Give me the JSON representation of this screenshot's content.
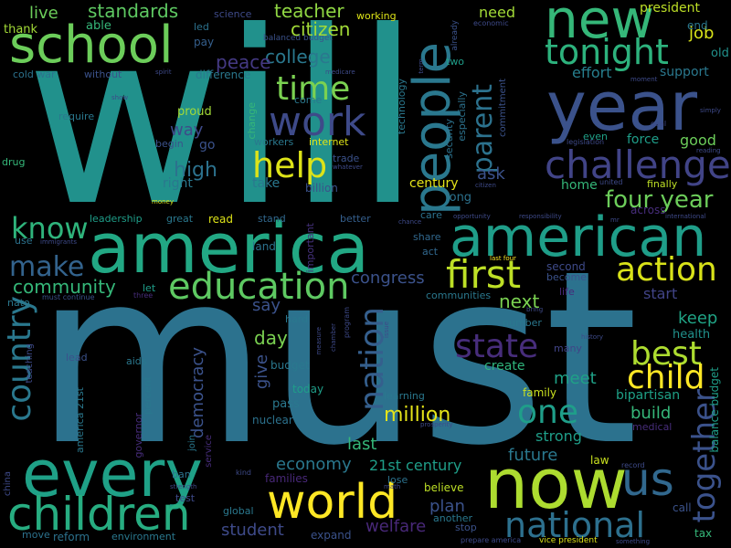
{
  "words": [
    {
      "text": "will",
      "color": "#21918c"
    },
    {
      "text": "must",
      "color": "#2c728e"
    },
    {
      "text": "america",
      "color": "#22a884"
    },
    {
      "text": "every",
      "color": "#1fa187"
    },
    {
      "text": "year",
      "color": "#3b528b"
    },
    {
      "text": "now",
      "color": "#addc30"
    },
    {
      "text": "american",
      "color": "#1f9e89"
    },
    {
      "text": "new",
      "color": "#35b779"
    },
    {
      "text": "people",
      "color": "#2a788e"
    },
    {
      "text": "school",
      "color": "#6ccd5a"
    },
    {
      "text": "children",
      "color": "#27ad81"
    },
    {
      "text": "world",
      "color": "#fde725"
    },
    {
      "text": "us",
      "color": "#31688e"
    },
    {
      "text": "challenge",
      "color": "#414487"
    },
    {
      "text": "work",
      "color": "#3e4a89"
    },
    {
      "text": "national",
      "color": "#2d708e"
    },
    {
      "text": "tonight",
      "color": "#2db27d"
    },
    {
      "text": "first",
      "color": "#bddf26"
    },
    {
      "text": "education",
      "color": "#5ec962"
    },
    {
      "text": "action",
      "color": "#d8e219"
    },
    {
      "text": "country",
      "color": "#2a788e"
    },
    {
      "text": "time",
      "color": "#7ad151"
    },
    {
      "text": "help",
      "color": "#dde318"
    },
    {
      "text": "nation",
      "color": "#355f8d"
    },
    {
      "text": "state",
      "color": "#472d7b"
    },
    {
      "text": "best",
      "color": "#addc30"
    },
    {
      "text": "child",
      "color": "#fde725"
    },
    {
      "text": "together",
      "color": "#3b528b"
    },
    {
      "text": "one",
      "color": "#1f9e89"
    },
    {
      "text": "parent",
      "color": "#2c728e"
    },
    {
      "text": "know",
      "color": "#2fb47c"
    },
    {
      "text": "make",
      "color": "#33638d"
    },
    {
      "text": "four year",
      "color": "#6ccd5a"
    },
    {
      "text": "community",
      "color": "#35b779"
    },
    {
      "text": "college",
      "color": "#2a788e"
    },
    {
      "text": "million",
      "color": "#e5e419"
    },
    {
      "text": "citizen",
      "color": "#a2da37"
    },
    {
      "text": "standards",
      "color": "#5ec962"
    },
    {
      "text": "teacher",
      "color": "#90d743"
    },
    {
      "text": "peace",
      "color": "#443983"
    },
    {
      "text": "live",
      "color": "#6ccd5a"
    },
    {
      "text": "high",
      "color": "#2c728e"
    },
    {
      "text": "congress",
      "color": "#3b528b"
    },
    {
      "text": "next",
      "color": "#7ad151"
    },
    {
      "text": "keep",
      "color": "#20a486"
    },
    {
      "text": "build",
      "color": "#35b779"
    },
    {
      "text": "meet",
      "color": "#1fa187"
    },
    {
      "text": "economy",
      "color": "#2a788e"
    },
    {
      "text": "21st century",
      "color": "#1f9e89"
    },
    {
      "text": "future",
      "color": "#2a788e"
    },
    {
      "text": "strong",
      "color": "#1f9e89"
    },
    {
      "text": "last",
      "color": "#35b779"
    },
    {
      "text": "plan",
      "color": "#3b528b"
    },
    {
      "text": "welfare",
      "color": "#482878"
    },
    {
      "text": "student",
      "color": "#3e4a89"
    },
    {
      "text": "democracy",
      "color": "#3b528b"
    },
    {
      "text": "day",
      "color": "#7ad151"
    },
    {
      "text": "give",
      "color": "#3b528b"
    },
    {
      "text": "say",
      "color": "#3b528b"
    },
    {
      "text": "job",
      "color": "#d8e219"
    },
    {
      "text": "effort",
      "color": "#277f8e"
    },
    {
      "text": "support",
      "color": "#2a788e"
    },
    {
      "text": "old",
      "color": "#21918c"
    },
    {
      "text": "good",
      "color": "#6ccd5a"
    },
    {
      "text": "force",
      "color": "#1f9e89"
    },
    {
      "text": "ask",
      "color": "#3b528b"
    },
    {
      "text": "home",
      "color": "#35b779"
    },
    {
      "text": "way",
      "color": "#3e4a89"
    },
    {
      "text": "need",
      "color": "#a2da37"
    },
    {
      "text": "president",
      "color": "#bddf26"
    },
    {
      "text": "create",
      "color": "#2fb47c"
    },
    {
      "text": "start",
      "color": "#414487"
    },
    {
      "text": "family",
      "color": "#cae11f"
    },
    {
      "text": "bipartisan",
      "color": "#1fa187"
    },
    {
      "text": "balance budget",
      "color": "#1f9e89"
    },
    {
      "text": "health",
      "color": "#21918c"
    },
    {
      "text": "take",
      "color": "#2a788e"
    },
    {
      "text": "right",
      "color": "#2a788e"
    },
    {
      "text": "billion",
      "color": "#3b528b"
    },
    {
      "text": "century",
      "color": "#e5e419"
    },
    {
      "text": "long",
      "color": "#2c728e"
    },
    {
      "text": "go",
      "color": "#3b528b"
    },
    {
      "text": "proud",
      "color": "#a2da37"
    },
    {
      "text": "difference",
      "color": "#2a788e"
    },
    {
      "text": "pay",
      "color": "#355f8d"
    },
    {
      "text": "able",
      "color": "#35b779"
    },
    {
      "text": "thank",
      "color": "#a2da37"
    },
    {
      "text": "leadership",
      "color": "#1f9e89"
    },
    {
      "text": "great",
      "color": "#2a788e"
    },
    {
      "text": "read",
      "color": "#dde318"
    },
    {
      "text": "stand",
      "color": "#31688e"
    },
    {
      "text": "better",
      "color": "#355f8d"
    },
    {
      "text": "care",
      "color": "#2c728e"
    },
    {
      "text": "share",
      "color": "#31688e"
    },
    {
      "text": "act",
      "color": "#31688e"
    },
    {
      "text": "land",
      "color": "#2c728e"
    },
    {
      "text": "important",
      "color": "#46327e"
    },
    {
      "text": "second",
      "color": "#3e4a89"
    },
    {
      "text": "become",
      "color": "#3b528b"
    },
    {
      "text": "life",
      "color": "#482878"
    },
    {
      "text": "lead",
      "color": "#3b528b"
    },
    {
      "text": "budget",
      "color": "#2a788e"
    },
    {
      "text": "today",
      "color": "#1f9e89"
    },
    {
      "text": "pass",
      "color": "#2a788e"
    },
    {
      "text": "nuclear",
      "color": "#2c728e"
    },
    {
      "text": "learning",
      "color": "#2a788e"
    },
    {
      "text": "hard",
      "color": "#2a788e"
    },
    {
      "text": "number",
      "color": "#2a788e"
    },
    {
      "text": "many",
      "color": "#414487"
    },
    {
      "text": "law",
      "color": "#cae11f"
    },
    {
      "text": "believe",
      "color": "#bddf26"
    },
    {
      "text": "another",
      "color": "#2a788e"
    },
    {
      "text": "stop",
      "color": "#3b528b"
    },
    {
      "text": "expand",
      "color": "#3b528b"
    },
    {
      "text": "reform",
      "color": "#2c728e"
    },
    {
      "text": "environment",
      "color": "#2a788e"
    },
    {
      "text": "move",
      "color": "#2c728e"
    },
    {
      "text": "families",
      "color": "#482878"
    },
    {
      "text": "global",
      "color": "#2a788e"
    },
    {
      "text": "lose",
      "color": "#2c728e"
    },
    {
      "text": "call",
      "color": "#3b528b"
    },
    {
      "text": "tax",
      "color": "#35b779"
    },
    {
      "text": "medical",
      "color": "#472d7b"
    },
    {
      "text": "finally",
      "color": "#bddf26"
    },
    {
      "text": "across",
      "color": "#472d7b"
    },
    {
      "text": "end",
      "color": "#2a788e"
    },
    {
      "text": "even",
      "color": "#1fa187"
    },
    {
      "text": "communities",
      "color": "#2a788e"
    },
    {
      "text": "two",
      "color": "#1f9e89"
    },
    {
      "text": "working",
      "color": "#dde318"
    },
    {
      "text": "science",
      "color": "#3e4a89"
    },
    {
      "text": "led",
      "color": "#2c728e"
    },
    {
      "text": "balanced budget",
      "color": "#3b528b"
    },
    {
      "text": "cold war",
      "color": "#2c728e"
    },
    {
      "text": "without",
      "color": "#3b528b"
    },
    {
      "text": "require",
      "color": "#2a788e"
    },
    {
      "text": "come",
      "color": "#2a788e"
    },
    {
      "text": "change",
      "color": "#35b779"
    },
    {
      "text": "begin",
      "color": "#3b528b"
    },
    {
      "text": "workers",
      "color": "#2a788e"
    },
    {
      "text": "internet",
      "color": "#dde318"
    },
    {
      "text": "trade",
      "color": "#3b528b"
    },
    {
      "text": "drug",
      "color": "#35b779"
    },
    {
      "text": "technology",
      "color": "#2a788e"
    },
    {
      "text": "security",
      "color": "#2c728e"
    },
    {
      "text": "especially",
      "color": "#2c728e"
    },
    {
      "text": "already",
      "color": "#3b528b"
    },
    {
      "text": "commitment",
      "color": "#3b528b"
    },
    {
      "text": "economic",
      "color": "#3e4a89"
    },
    {
      "text": "legislation",
      "color": "#3e4a89"
    },
    {
      "text": "united",
      "color": "#3e4a89"
    },
    {
      "text": "goal",
      "color": "#3e4a89"
    },
    {
      "text": "use",
      "color": "#2c728e"
    },
    {
      "text": "nato",
      "color": "#2a788e"
    },
    {
      "text": "let",
      "color": "#1f9e89"
    },
    {
      "text": "three",
      "color": "#472d7b"
    },
    {
      "text": "must continue",
      "color": "#3b528b"
    },
    {
      "text": "aids",
      "color": "#2a788e"
    },
    {
      "text": "percent",
      "color": "#2a788e"
    },
    {
      "text": "governor",
      "color": "#472d7b"
    },
    {
      "text": "america 21st",
      "color": "#2a788e"
    },
    {
      "text": "teaching",
      "color": "#3e4a89"
    },
    {
      "text": "join",
      "color": "#2a788e"
    },
    {
      "text": "service",
      "color": "#472d7b"
    },
    {
      "text": "ban",
      "color": "#2c728e"
    },
    {
      "text": "test",
      "color": "#3e4a89"
    },
    {
      "text": "strength",
      "color": "#3e4a89"
    },
    {
      "text": "kind",
      "color": "#3e4a89"
    },
    {
      "text": "math",
      "color": "#3e4a89"
    },
    {
      "text": "record",
      "color": "#3e4a89"
    },
    {
      "text": "prepare america",
      "color": "#3e4a89"
    },
    {
      "text": "vice president",
      "color": "#dde318"
    },
    {
      "text": "something",
      "color": "#3e4a89"
    },
    {
      "text": "prosperity",
      "color": "#3e4a89"
    },
    {
      "text": "china",
      "color": "#3e4a89"
    },
    {
      "text": "last four",
      "color": "#fde725"
    },
    {
      "text": "bring",
      "color": "#3e4a89"
    },
    {
      "text": "history",
      "color": "#3e4a89"
    },
    {
      "text": "issue",
      "color": "#3e4a89"
    },
    {
      "text": "program",
      "color": "#3e4a89"
    },
    {
      "text": "chamber",
      "color": "#3e4a89"
    },
    {
      "text": "measure",
      "color": "#3e4a89"
    },
    {
      "text": "opportunity",
      "color": "#3e4a89"
    },
    {
      "text": "responsibility",
      "color": "#3e4a89"
    },
    {
      "text": "chance",
      "color": "#3e4a89"
    },
    {
      "text": "international",
      "color": "#3e4a89"
    },
    {
      "text": "money",
      "color": "#dde318"
    },
    {
      "text": "immigrants",
      "color": "#3e4a89"
    },
    {
      "text": "medicare",
      "color": "#3e4a89"
    },
    {
      "text": "spirit",
      "color": "#3e4a89"
    },
    {
      "text": "show",
      "color": "#3e4a89"
    },
    {
      "text": "moment",
      "color": "#3e4a89"
    },
    {
      "text": "simply",
      "color": "#3e4a89"
    },
    {
      "text": "reading",
      "color": "#3e4a89"
    },
    {
      "text": "term",
      "color": "#3e4a89"
    },
    {
      "text": "whatever",
      "color": "#3e4a89"
    },
    {
      "text": "mr",
      "color": "#3e4a89"
    },
    {
      "text": "citizen",
      "color": "#3e4a89"
    }
  ]
}
